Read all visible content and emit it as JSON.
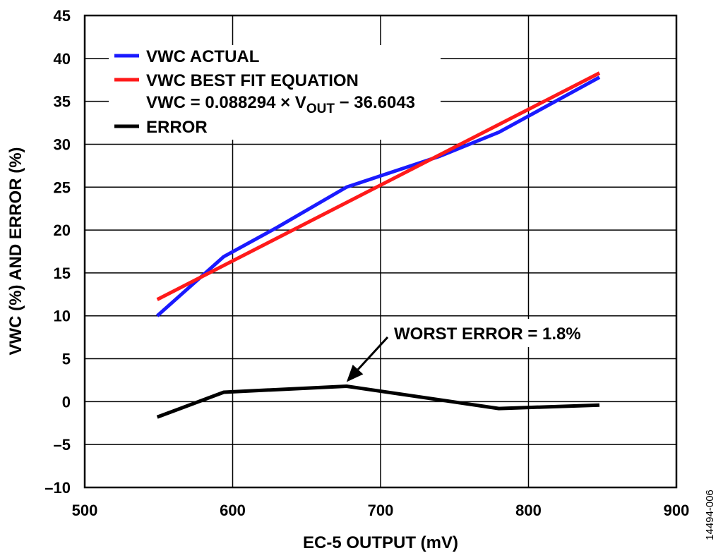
{
  "figure_id": "14494-006",
  "chart_data": {
    "type": "line",
    "xlabel": "EC-5 OUTPUT (mV)",
    "ylabel": "VWC (%) AND ERROR (%)",
    "xlim": [
      500,
      900
    ],
    "ylim": [
      -10,
      45
    ],
    "xticks": [
      500,
      600,
      700,
      800,
      900
    ],
    "yticks": [
      45,
      40,
      35,
      30,
      25,
      20,
      15,
      10,
      5,
      0,
      -5,
      -10
    ],
    "xtick_labels": [
      "500",
      "600",
      "700",
      "800",
      "900"
    ],
    "ytick_labels": [
      "45",
      "40",
      "35",
      "30",
      "25",
      "20",
      "15",
      "10",
      "5",
      "0",
      "–5",
      "–10"
    ],
    "grid": true,
    "legend_position": "top-left",
    "series": [
      {
        "name": "VWC ACTUAL",
        "color": "#1a1aff",
        "x": [
          549,
          594,
          630,
          677,
          740,
          780,
          848
        ],
        "y": [
          10.0,
          16.9,
          20.3,
          25.0,
          28.6,
          31.4,
          37.8
        ]
      },
      {
        "name": "VWC BEST FIT EQUATION",
        "color": "#ff1a1a",
        "x": [
          549,
          848
        ],
        "y": [
          11.9,
          38.3
        ]
      },
      {
        "name": "ERROR",
        "color": "#000000",
        "x": [
          549,
          594,
          677,
          780,
          848
        ],
        "y": [
          -1.8,
          1.1,
          1.8,
          -0.8,
          -0.4
        ]
      }
    ],
    "equation": {
      "prefix": "VWC = 0.088294 × V",
      "subscript": "OUT",
      "suffix": " − 36.6043"
    },
    "annotation": {
      "text": "WORST ERROR = 1.8%",
      "target_x": 677,
      "target_y": 1.8
    }
  }
}
